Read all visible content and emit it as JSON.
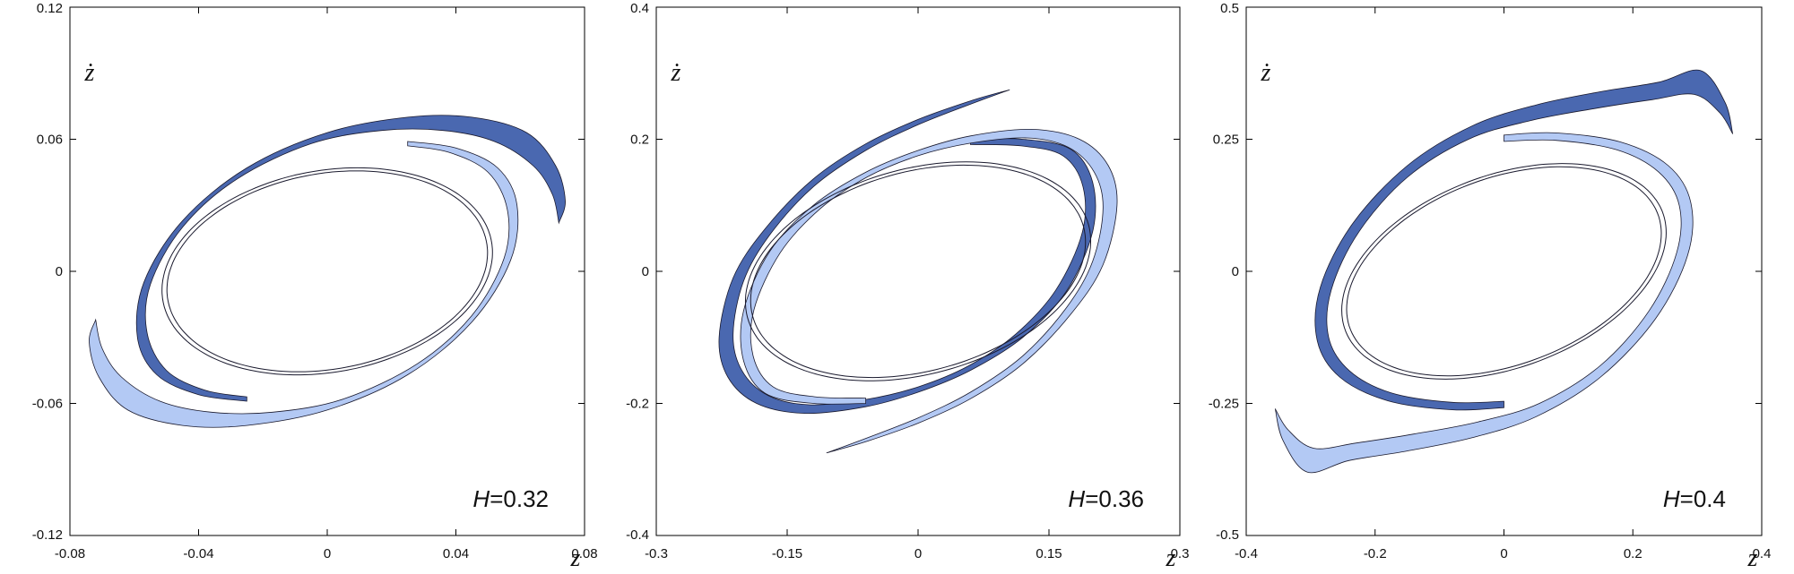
{
  "colors": {
    "dark_band": "#4a68b0",
    "light_band": "#b3c9f4",
    "curve_outline": "#1a1a2e",
    "frame": "#000000"
  },
  "chart_data": [
    {
      "type": "line",
      "xlabel": "z",
      "ylabel": "ż",
      "xlim": [
        -0.08,
        0.08
      ],
      "ylim": [
        -0.12,
        0.12
      ],
      "xticks": [
        "-0.08",
        "-0.04",
        "0",
        "0.04",
        "0.08"
      ],
      "yticks": [
        "-0.12",
        "-0.06",
        "0",
        "0.06",
        "0.12"
      ],
      "xtick_values": [
        -0.08,
        -0.04,
        0,
        0.04,
        0.08
      ],
      "ytick_values": [
        -0.12,
        -0.06,
        0,
        0.06,
        0.12
      ],
      "annotation": {
        "var": "H",
        "eq": "=",
        "value": "0.32"
      },
      "grid": false,
      "series": [
        {
          "fill": "dark",
          "outer": [
            [
              0.072,
              0.022
            ],
            [
              0.074,
              0.032
            ],
            [
              0.071,
              0.048
            ],
            [
              0.062,
              0.063
            ],
            [
              0.045,
              0.07
            ],
            [
              0.025,
              0.07
            ],
            [
              0.0,
              0.063
            ],
            [
              -0.025,
              0.047
            ],
            [
              -0.045,
              0.023
            ],
            [
              -0.057,
              -0.005
            ],
            [
              -0.059,
              -0.03
            ],
            [
              -0.053,
              -0.047
            ],
            [
              -0.04,
              -0.056
            ],
            [
              -0.025,
              -0.059
            ]
          ],
          "inner": [
            [
              0.072,
              0.022
            ],
            [
              0.07,
              0.035
            ],
            [
              0.064,
              0.048
            ],
            [
              0.052,
              0.059
            ],
            [
              0.036,
              0.064
            ],
            [
              0.017,
              0.064
            ],
            [
              -0.005,
              0.058
            ],
            [
              -0.028,
              0.042
            ],
            [
              -0.045,
              0.02
            ],
            [
              -0.055,
              -0.006
            ],
            [
              -0.056,
              -0.028
            ],
            [
              -0.05,
              -0.045
            ],
            [
              -0.038,
              -0.054
            ],
            [
              -0.025,
              -0.057
            ]
          ]
        },
        {
          "fill": "light",
          "outer": [
            [
              -0.072,
              -0.022
            ],
            [
              -0.074,
              -0.032
            ],
            [
              -0.071,
              -0.048
            ],
            [
              -0.062,
              -0.063
            ],
            [
              -0.045,
              -0.07
            ],
            [
              -0.025,
              -0.07
            ],
            [
              0.0,
              -0.063
            ],
            [
              0.025,
              -0.047
            ],
            [
              0.045,
              -0.023
            ],
            [
              0.057,
              0.005
            ],
            [
              0.059,
              0.03
            ],
            [
              0.053,
              0.047
            ],
            [
              0.04,
              0.056
            ],
            [
              0.025,
              0.059
            ]
          ],
          "inner": [
            [
              -0.072,
              -0.022
            ],
            [
              -0.07,
              -0.035
            ],
            [
              -0.064,
              -0.048
            ],
            [
              -0.052,
              -0.059
            ],
            [
              -0.036,
              -0.064
            ],
            [
              -0.017,
              -0.064
            ],
            [
              0.005,
              -0.058
            ],
            [
              0.028,
              -0.042
            ],
            [
              0.045,
              -0.02
            ],
            [
              0.055,
              0.006
            ],
            [
              0.056,
              0.028
            ],
            [
              0.05,
              0.045
            ],
            [
              0.038,
              0.054
            ],
            [
              0.025,
              0.057
            ]
          ]
        },
        {
          "fill": "none",
          "ellipse": {
            "a": 0.054,
            "b": 0.044,
            "angle": 0.56,
            "turns": [
              1.0,
              0.97
            ]
          }
        }
      ]
    },
    {
      "type": "line",
      "xlabel": "z",
      "ylabel": "ż",
      "xlim": [
        -0.3,
        0.3
      ],
      "ylim": [
        -0.4,
        0.4
      ],
      "xticks": [
        "-0.3",
        "-0.15",
        "0",
        "0.15",
        "0.3"
      ],
      "yticks": [
        "-0.4",
        "-0.2",
        "0",
        "0.2",
        "0.4"
      ],
      "xtick_values": [
        -0.3,
        -0.15,
        0,
        0.15,
        0.3
      ],
      "ytick_values": [
        -0.4,
        -0.2,
        0,
        0.2,
        0.4
      ],
      "annotation": {
        "var": "H",
        "eq": "=",
        "value": "0.36"
      },
      "grid": false,
      "series": [
        {
          "fill": "dark",
          "outer": [
            [
              0.105,
              0.275
            ],
            [
              0.06,
              0.258
            ],
            [
              0.0,
              0.23
            ],
            [
              -0.06,
              0.193
            ],
            [
              -0.12,
              0.14
            ],
            [
              -0.175,
              0.065
            ],
            [
              -0.212,
              -0.01
            ],
            [
              -0.228,
              -0.1
            ],
            [
              -0.218,
              -0.16
            ],
            [
              -0.185,
              -0.2
            ],
            [
              -0.13,
              -0.215
            ],
            [
              -0.06,
              -0.205
            ],
            [
              0.0,
              -0.183
            ],
            [
              0.06,
              -0.15
            ],
            [
              0.12,
              -0.1
            ],
            [
              0.17,
              -0.03
            ],
            [
              0.2,
              0.06
            ],
            [
              0.2,
              0.135
            ],
            [
              0.175,
              0.185
            ],
            [
              0.12,
              0.2
            ],
            [
              0.06,
              0.2
            ]
          ],
          "inner": [
            [
              0.105,
              0.275
            ],
            [
              0.06,
              0.253
            ],
            [
              0.0,
              0.222
            ],
            [
              -0.06,
              0.183
            ],
            [
              -0.12,
              0.128
            ],
            [
              -0.17,
              0.055
            ],
            [
              -0.2,
              -0.015
            ],
            [
              -0.212,
              -0.095
            ],
            [
              -0.202,
              -0.15
            ],
            [
              -0.172,
              -0.188
            ],
            [
              -0.125,
              -0.202
            ],
            [
              -0.06,
              -0.194
            ],
            [
              0.0,
              -0.175
            ],
            [
              0.058,
              -0.143
            ],
            [
              0.112,
              -0.095
            ],
            [
              0.158,
              -0.028
            ],
            [
              0.188,
              0.058
            ],
            [
              0.189,
              0.128
            ],
            [
              0.166,
              0.175
            ],
            [
              0.118,
              0.19
            ],
            [
              0.06,
              0.192
            ]
          ]
        },
        {
          "fill": "light",
          "outer": [
            [
              -0.105,
              -0.275
            ],
            [
              -0.06,
              -0.258
            ],
            [
              0.0,
              -0.23
            ],
            [
              0.06,
              -0.193
            ],
            [
              0.12,
              -0.14
            ],
            [
              0.175,
              -0.065
            ],
            [
              0.212,
              0.01
            ],
            [
              0.228,
              0.1
            ],
            [
              0.218,
              0.16
            ],
            [
              0.185,
              0.2
            ],
            [
              0.13,
              0.215
            ],
            [
              0.06,
              0.205
            ],
            [
              0.0,
              0.183
            ],
            [
              -0.06,
              0.15
            ],
            [
              -0.12,
              0.1
            ],
            [
              -0.17,
              0.03
            ],
            [
              -0.2,
              -0.06
            ],
            [
              -0.2,
              -0.135
            ],
            [
              -0.175,
              -0.185
            ],
            [
              -0.12,
              -0.2
            ],
            [
              -0.06,
              -0.2
            ]
          ],
          "inner": [
            [
              -0.105,
              -0.275
            ],
            [
              -0.06,
              -0.253
            ],
            [
              0.0,
              -0.222
            ],
            [
              0.06,
              -0.183
            ],
            [
              0.12,
              -0.128
            ],
            [
              0.17,
              -0.055
            ],
            [
              0.2,
              0.015
            ],
            [
              0.212,
              0.095
            ],
            [
              0.202,
              0.15
            ],
            [
              0.172,
              0.188
            ],
            [
              0.125,
              0.202
            ],
            [
              0.06,
              0.194
            ],
            [
              0.0,
              0.175
            ],
            [
              -0.058,
              0.143
            ],
            [
              -0.112,
              0.095
            ],
            [
              -0.158,
              0.028
            ],
            [
              -0.188,
              -0.058
            ],
            [
              -0.189,
              -0.128
            ],
            [
              -0.166,
              -0.175
            ],
            [
              -0.118,
              -0.19
            ],
            [
              -0.06,
              -0.192
            ]
          ]
        },
        {
          "fill": "none",
          "ellipse": {
            "a": 0.21,
            "b": 0.15,
            "angle": 0.5,
            "turns": [
              1.0,
              0.97
            ]
          }
        }
      ]
    },
    {
      "type": "line",
      "xlabel": "z",
      "ylabel": "ż",
      "xlim": [
        -0.4,
        0.4
      ],
      "ylim": [
        -0.5,
        0.5
      ],
      "xticks": [
        "-0.4",
        "-0.2",
        "0",
        "0.2",
        "0.4"
      ],
      "yticks": [
        "-0.5",
        "-0.25",
        "0",
        "0.25",
        "0.5"
      ],
      "xtick_values": [
        -0.4,
        -0.2,
        0,
        0.2,
        0.4
      ],
      "ytick_values": [
        -0.5,
        -0.25,
        0,
        0.25,
        0.5
      ],
      "annotation": {
        "var": "H",
        "eq": "=",
        "value": "0.4"
      },
      "grid": false,
      "series": [
        {
          "fill": "dark",
          "outer": [
            [
              0.355,
              0.26
            ],
            [
              0.343,
              0.32
            ],
            [
              0.305,
              0.38
            ],
            [
              0.24,
              0.358
            ],
            [
              0.15,
              0.34
            ],
            [
              0.05,
              0.315
            ],
            [
              -0.05,
              0.275
            ],
            [
              -0.15,
              0.2
            ],
            [
              -0.235,
              0.09
            ],
            [
              -0.285,
              -0.03
            ],
            [
              -0.29,
              -0.13
            ],
            [
              -0.255,
              -0.2
            ],
            [
              -0.18,
              -0.245
            ],
            [
              -0.08,
              -0.262
            ],
            [
              0.0,
              -0.258
            ]
          ],
          "inner": [
            [
              0.355,
              0.26
            ],
            [
              0.335,
              0.3
            ],
            [
              0.295,
              0.335
            ],
            [
              0.23,
              0.325
            ],
            [
              0.14,
              0.308
            ],
            [
              0.04,
              0.285
            ],
            [
              -0.055,
              0.25
            ],
            [
              -0.15,
              0.178
            ],
            [
              -0.225,
              0.075
            ],
            [
              -0.268,
              -0.035
            ],
            [
              -0.272,
              -0.125
            ],
            [
              -0.24,
              -0.188
            ],
            [
              -0.175,
              -0.23
            ],
            [
              -0.08,
              -0.248
            ],
            [
              0.0,
              -0.246
            ]
          ]
        },
        {
          "fill": "light",
          "outer": [
            [
              -0.355,
              -0.26
            ],
            [
              -0.343,
              -0.32
            ],
            [
              -0.305,
              -0.38
            ],
            [
              -0.24,
              -0.358
            ],
            [
              -0.15,
              -0.34
            ],
            [
              -0.05,
              -0.315
            ],
            [
              0.05,
              -0.275
            ],
            [
              0.15,
              -0.2
            ],
            [
              0.235,
              -0.09
            ],
            [
              0.285,
              0.03
            ],
            [
              0.29,
              0.13
            ],
            [
              0.255,
              0.2
            ],
            [
              0.18,
              0.245
            ],
            [
              0.08,
              0.262
            ],
            [
              0.0,
              0.258
            ]
          ],
          "inner": [
            [
              -0.355,
              -0.26
            ],
            [
              -0.335,
              -0.3
            ],
            [
              -0.295,
              -0.335
            ],
            [
              -0.23,
              -0.325
            ],
            [
              -0.14,
              -0.308
            ],
            [
              -0.04,
              -0.285
            ],
            [
              0.055,
              -0.25
            ],
            [
              0.15,
              -0.178
            ],
            [
              0.225,
              -0.075
            ],
            [
              0.268,
              0.035
            ],
            [
              0.272,
              0.125
            ],
            [
              0.24,
              0.188
            ],
            [
              0.175,
              0.23
            ],
            [
              0.08,
              0.248
            ],
            [
              0.0,
              0.246
            ]
          ]
        },
        {
          "fill": "none",
          "ellipse": {
            "a": 0.272,
            "b": 0.176,
            "angle": 0.52,
            "turns": [
              1.0,
              0.97
            ]
          }
        }
      ]
    }
  ]
}
